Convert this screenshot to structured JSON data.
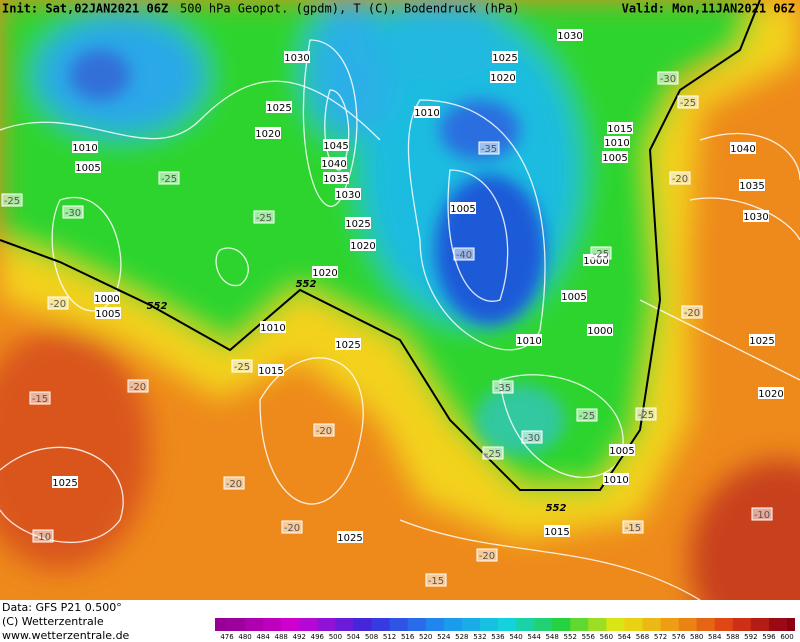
{
  "header": {
    "init": "Init: Sat,02JAN2021 06Z",
    "title": "500 hPa Geopot. (gpdm), T (C), Bodendruck (hPa)",
    "valid": "Valid: Mon,11JAN2021 06Z"
  },
  "footer": {
    "data": "Data: GFS P21 0.500°",
    "copyright": "(C) Wetterzentrale",
    "url": "www.wetterzentrale.de"
  },
  "colorbar": {
    "ticks": [
      476,
      480,
      484,
      488,
      492,
      496,
      500,
      504,
      508,
      512,
      516,
      520,
      524,
      528,
      532,
      536,
      540,
      544,
      548,
      552,
      556,
      560,
      564,
      568,
      572,
      576,
      580,
      584,
      588,
      592,
      596,
      600
    ]
  },
  "pressure_labels": [
    "1030",
    "1025",
    "1020",
    "1030",
    "1025",
    "1020",
    "1010",
    "1015",
    "1010",
    "1005",
    "1045",
    "1040",
    "1035",
    "1030",
    "1025",
    "1020",
    "1010",
    "1005",
    "1005",
    "1000",
    "1005",
    "1000",
    "1010",
    "1040",
    "1035",
    "1030",
    "1020",
    "1000",
    "1005",
    "1010",
    "1025",
    "1015",
    "1025",
    "1020",
    "1005",
    "1010",
    "1025",
    "1025",
    "1015"
  ],
  "temperature_labels": [
    "-30",
    "-25",
    "-35",
    "-25",
    "-25",
    "-30",
    "-25",
    "-20",
    "-40",
    "-25",
    "-20",
    "-20",
    "-25",
    "-35",
    "-20",
    "-15",
    "-25",
    "-25",
    "-30",
    "-20",
    "-25",
    "-20",
    "-20",
    "-15",
    "-10",
    "-10",
    "-20",
    "-15"
  ],
  "geopotential_labels": [
    "552",
    "552",
    "552"
  ]
}
